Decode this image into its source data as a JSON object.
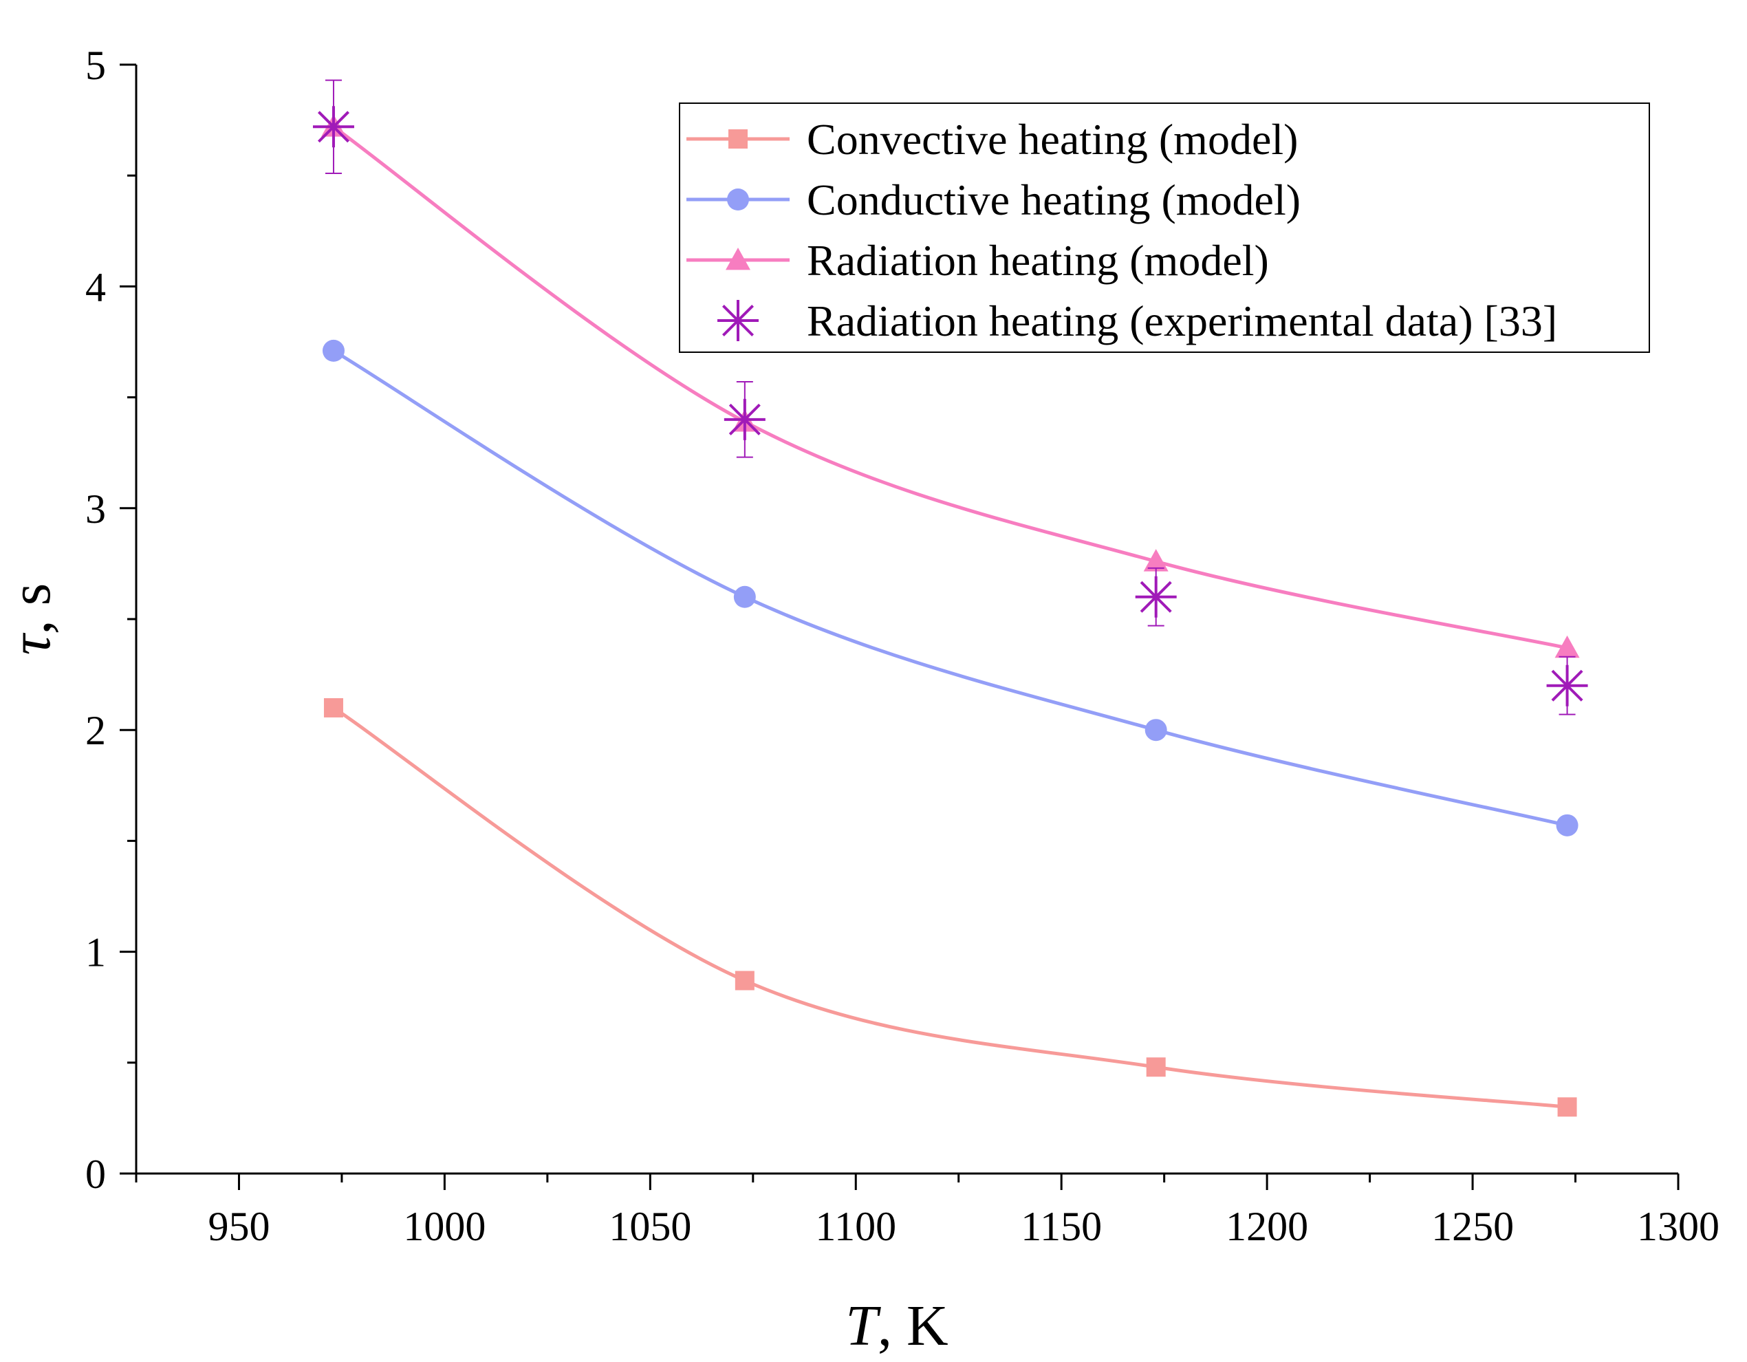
{
  "chart_data": {
    "type": "line",
    "xlabel": {
      "var": "T",
      "unit": ", K"
    },
    "ylabel": {
      "var": "τ",
      "unit": ", s"
    },
    "xlim": [
      925,
      1300
    ],
    "ylim": [
      0,
      5
    ],
    "x_ticks": [
      950,
      1000,
      1050,
      1100,
      1150,
      1200,
      1250,
      1300
    ],
    "y_ticks": [
      0,
      1,
      2,
      3,
      4,
      5
    ],
    "legend_position": "top-right",
    "grid": false,
    "series": [
      {
        "name": "Convective heating (model)",
        "marker": "square",
        "color": "#f79a98",
        "x": [
          973,
          1073,
          1173,
          1273
        ],
        "y": [
          2.1,
          0.87,
          0.48,
          0.3
        ]
      },
      {
        "name": "Conductive heating (model)",
        "marker": "circle",
        "color": "#939ef7",
        "x": [
          973,
          1073,
          1173,
          1273
        ],
        "y": [
          3.71,
          2.6,
          2.0,
          1.57
        ]
      },
      {
        "name": "Radiation heating (model)",
        "marker": "triangle",
        "color": "#f77dc0",
        "x": [
          973,
          1073,
          1173,
          1273
        ],
        "y": [
          4.72,
          3.39,
          2.76,
          2.37
        ]
      },
      {
        "name": "Radiation heating (experimental data) [33]",
        "marker": "asterisk",
        "color": "#a01ab8",
        "line": false,
        "x": [
          973,
          1073,
          1173,
          1273
        ],
        "y": [
          4.72,
          3.4,
          2.6,
          2.2
        ],
        "error": [
          0.21,
          0.17,
          0.13,
          0.13
        ]
      }
    ]
  }
}
